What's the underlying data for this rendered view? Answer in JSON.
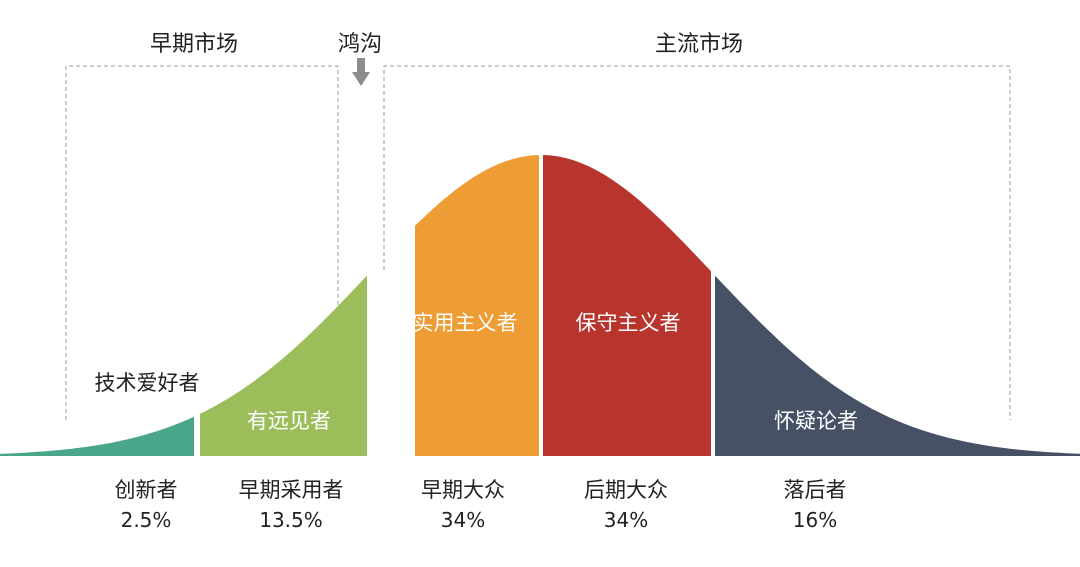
{
  "chart_data": {
    "type": "area",
    "title": "",
    "markets": {
      "early": "早期市场",
      "chasm": "鸿沟",
      "mainstream": "主流市场"
    },
    "segments": [
      {
        "name": "创新者",
        "inner_label": "技术爱好者",
        "percent": "2.5%",
        "value": 2.5,
        "color": "#4aa68a"
      },
      {
        "name": "早期采用者",
        "inner_label": "有远见者",
        "percent": "13.5%",
        "value": 13.5,
        "color": "#9bbd5a"
      },
      {
        "name": "早期大众",
        "inner_label": "实用主义者",
        "percent": "34%",
        "value": 34,
        "color": "#ee9c34"
      },
      {
        "name": "后期大众",
        "inner_label": "保守主义者",
        "percent": "34%",
        "value": 34,
        "color": "#b8352d"
      },
      {
        "name": "落后者",
        "inner_label": "怀疑论者",
        "percent": "16%",
        "value": 16,
        "color": "#465166"
      }
    ],
    "x_range": [
      -3.2,
      3.2
    ],
    "boundaries_sigma": [
      -2,
      -1,
      0,
      1
    ]
  }
}
